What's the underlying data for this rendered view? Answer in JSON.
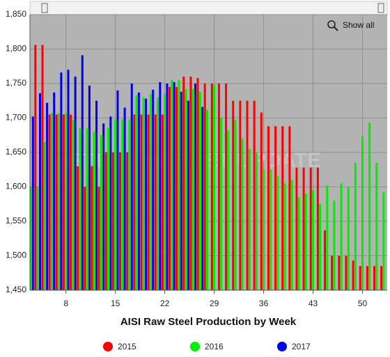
{
  "chart_data": {
    "type": "bar",
    "x_label": "AISI Raw Steel Production by Week",
    "watermark": "STEEL MARKET UPDATE",
    "show_all_button": "Show all",
    "x": [
      3,
      4,
      5,
      6,
      7,
      8,
      9,
      10,
      11,
      12,
      13,
      14,
      15,
      16,
      17,
      18,
      19,
      20,
      21,
      22,
      23,
      24,
      25,
      26,
      27,
      28,
      29,
      30,
      31,
      32,
      33,
      34,
      35,
      36,
      37,
      38,
      39,
      40,
      41,
      42,
      43,
      44,
      45,
      46,
      47,
      48,
      49,
      50,
      51,
      52,
      53
    ],
    "xlim": [
      2.9,
      53.5
    ],
    "xticks": [
      8,
      15,
      22,
      29,
      36,
      43,
      50
    ],
    "ylim": [
      1450,
      1850
    ],
    "yticks": [
      {
        "value": 1450,
        "label": "1,450"
      },
      {
        "value": 1500,
        "label": "1,500"
      },
      {
        "value": 1550,
        "label": "1,550"
      },
      {
        "value": 1600,
        "label": "1,600"
      },
      {
        "value": 1650,
        "label": "1,650"
      },
      {
        "value": 1700,
        "label": "1,700"
      },
      {
        "value": 1750,
        "label": "1,750"
      },
      {
        "value": 1800,
        "label": "1,800"
      },
      {
        "value": 1850,
        "label": "1,850"
      }
    ],
    "grid": true,
    "legend_position": "bottom",
    "series": [
      {
        "name": "2015",
        "color": "#ff0000",
        "values": [
          null,
          1806,
          1806,
          1705,
          1705,
          1705,
          1705,
          1630,
          1600,
          1630,
          1600,
          1650,
          1650,
          1650,
          1650,
          1705,
          1705,
          1705,
          1705,
          1705,
          1745,
          1745,
          1760,
          1760,
          1758,
          1750,
          1750,
          1750,
          1750,
          1725,
          1725,
          1725,
          1725,
          1708,
          1688,
          1688,
          1688,
          1688,
          1628,
          1628,
          1628,
          1628,
          1537,
          1500,
          1500,
          1500,
          1493,
          1485,
          1485,
          1485,
          1485
        ]
      },
      {
        "name": "2016",
        "color": "#00ee00",
        "values": [
          1600,
          1600,
          1665,
          1707,
          1707,
          1707,
          1697,
          1685,
          1685,
          1680,
          1675,
          1685,
          1698,
          1698,
          1698,
          1733,
          1730,
          1735,
          1730,
          1735,
          1755,
          1755,
          1742,
          1742,
          1738,
          1712,
          1748,
          1700,
          1682,
          1697,
          1670,
          1655,
          1650,
          1625,
          1625,
          1615,
          1605,
          1610,
          1585,
          1590,
          1595,
          1575,
          1602,
          1580,
          1605,
          1600,
          1635,
          1673,
          1693,
          1635,
          1592
        ]
      },
      {
        "name": "2017",
        "color": "#0000ee",
        "values": [
          1702,
          1736,
          1722,
          1737,
          1766,
          1770,
          1760,
          1791,
          1747,
          1725,
          1692,
          1702,
          1740,
          1715,
          1750,
          1737,
          1728,
          1741,
          1752,
          1750,
          1752,
          1738,
          1725,
          1750,
          1716,
          null,
          null,
          null,
          null,
          null,
          null,
          null,
          null,
          null,
          null,
          null,
          null,
          null,
          null,
          null,
          null,
          null,
          null,
          null,
          null,
          null,
          null,
          null,
          null,
          null,
          null
        ]
      }
    ]
  }
}
